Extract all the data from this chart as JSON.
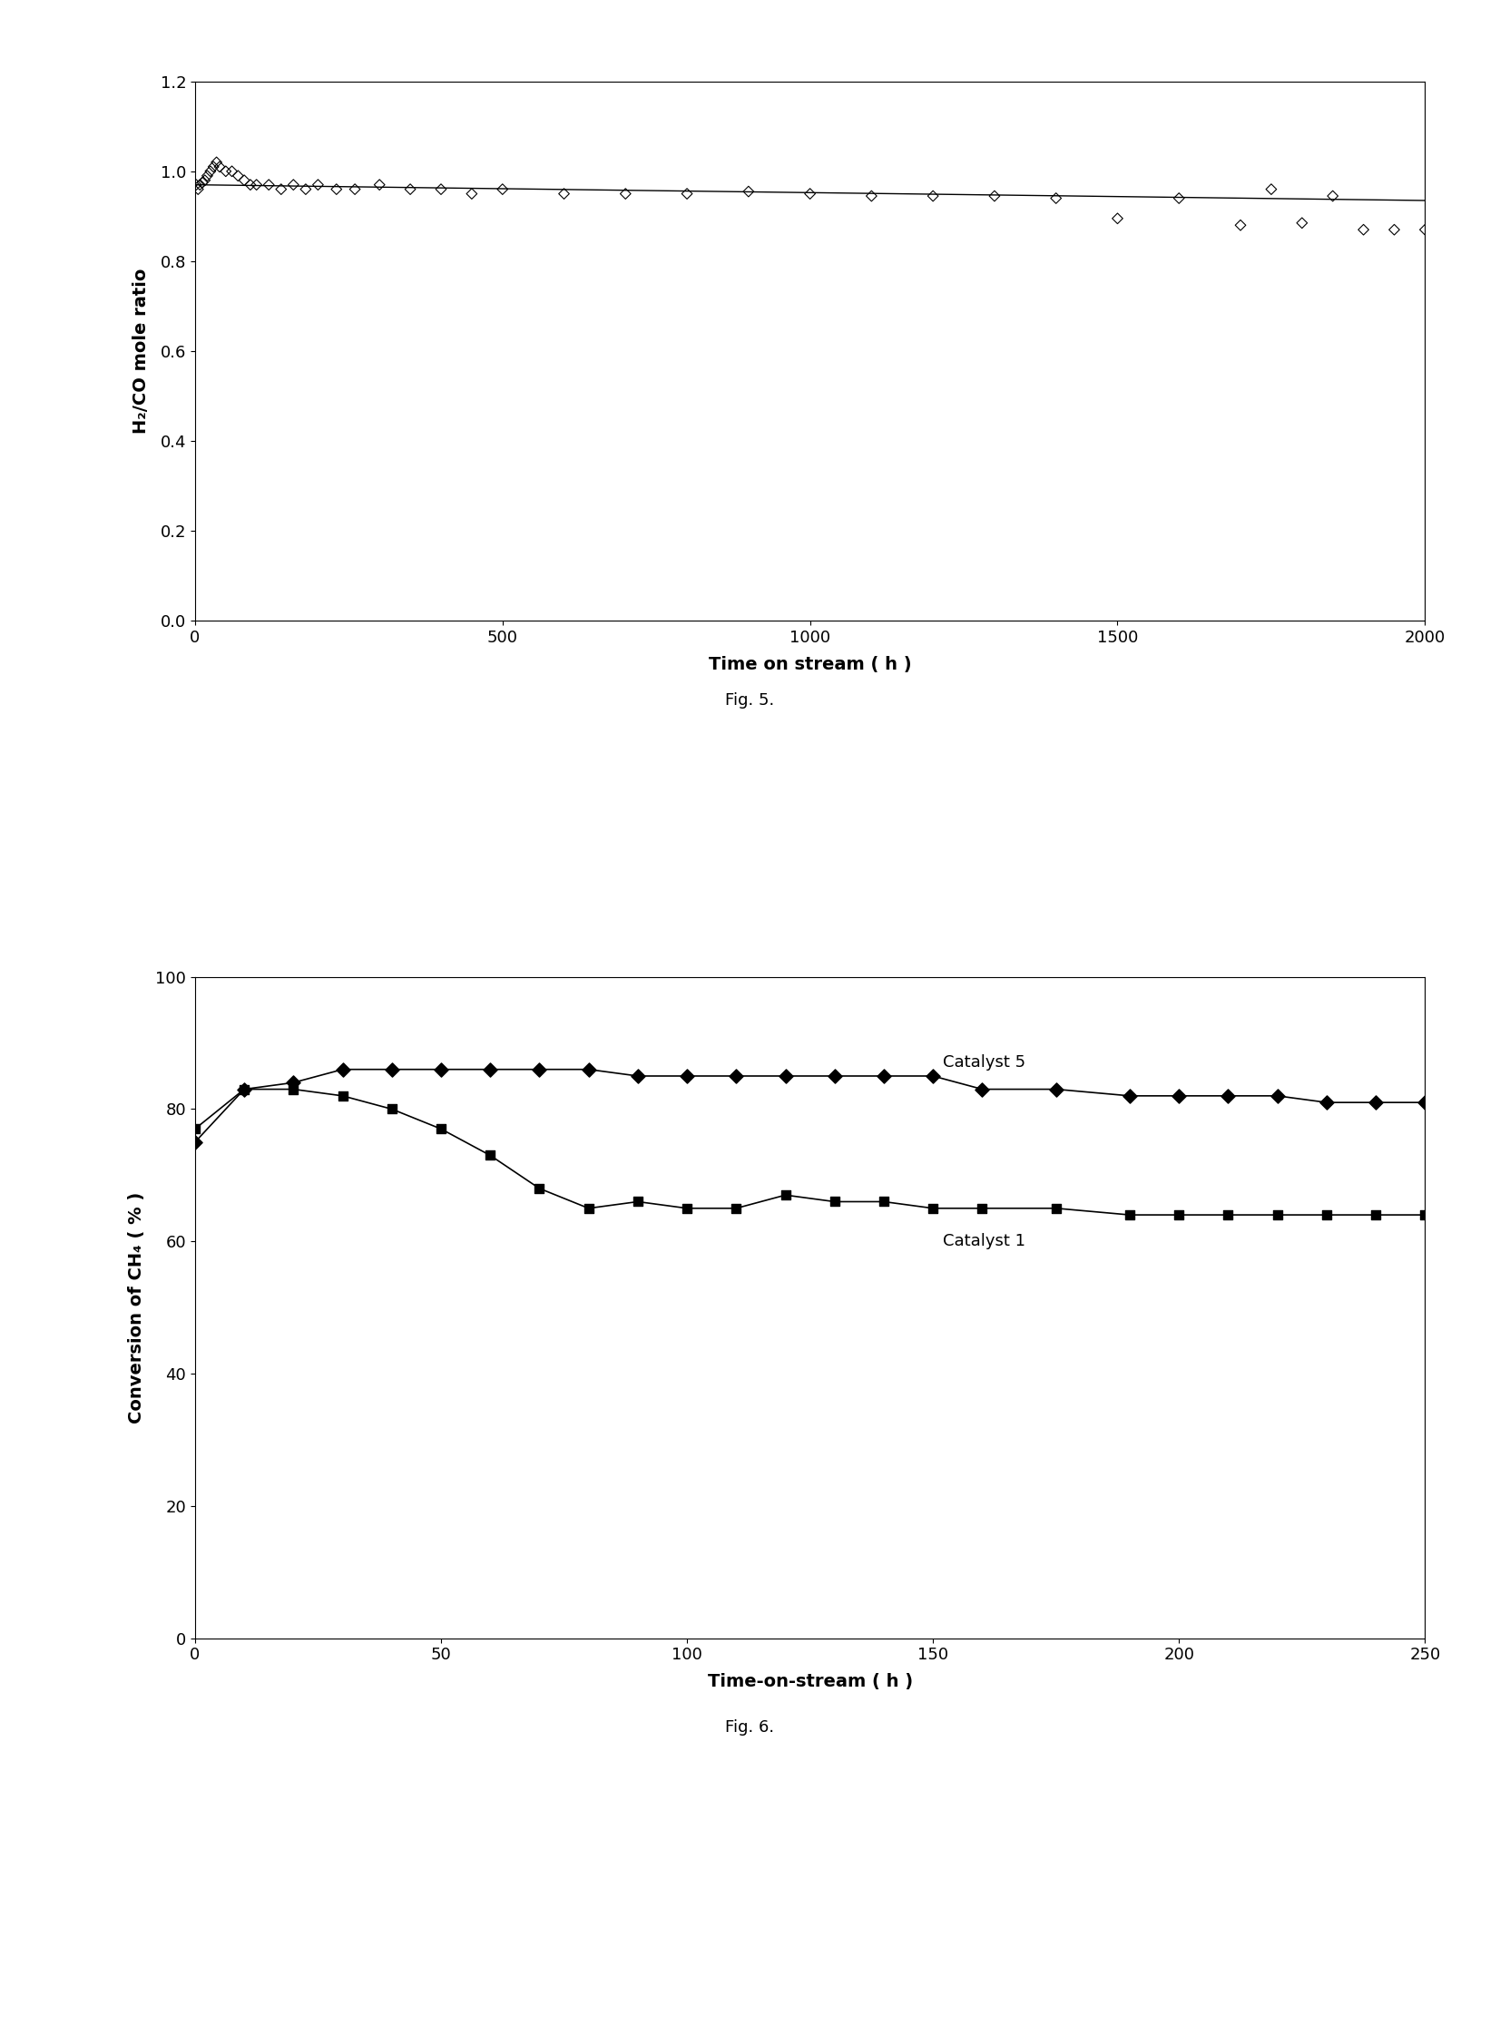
{
  "fig5": {
    "title": "Fig. 5.",
    "ylabel": "H₂/CO mole ratio",
    "xlabel": "Time on stream ( h )",
    "xlim": [
      0,
      2000
    ],
    "ylim": [
      0,
      1.2
    ],
    "yticks": [
      0,
      0.2,
      0.4,
      0.6,
      0.8,
      1.0,
      1.2
    ],
    "xticks": [
      0,
      500,
      1000,
      1500,
      2000
    ],
    "scatter_x": [
      2,
      5,
      8,
      12,
      16,
      20,
      25,
      30,
      35,
      40,
      50,
      60,
      70,
      80,
      90,
      100,
      120,
      140,
      160,
      180,
      200,
      230,
      260,
      300,
      350,
      400,
      450,
      500,
      600,
      700,
      800,
      900,
      1000,
      1100,
      1200,
      1300,
      1400,
      1500,
      1600,
      1700,
      1750,
      1800,
      1850,
      1900,
      1950,
      2000
    ],
    "scatter_y": [
      0.97,
      0.96,
      0.97,
      0.975,
      0.98,
      0.99,
      1.0,
      1.01,
      1.02,
      1.01,
      1.0,
      1.0,
      0.99,
      0.98,
      0.97,
      0.97,
      0.97,
      0.96,
      0.97,
      0.96,
      0.97,
      0.96,
      0.96,
      0.97,
      0.96,
      0.96,
      0.95,
      0.96,
      0.95,
      0.95,
      0.95,
      0.955,
      0.95,
      0.945,
      0.945,
      0.945,
      0.94,
      0.895,
      0.94,
      0.88,
      0.96,
      0.885,
      0.945,
      0.87,
      0.87,
      0.87
    ],
    "line_x": [
      0,
      2000
    ],
    "line_y": [
      0.97,
      0.935
    ]
  },
  "fig6": {
    "title": "Fig. 6.",
    "ylabel": "Conversion of CH₄ ( % )",
    "xlabel": "Time-on-stream ( h )",
    "xlim": [
      0,
      250
    ],
    "ylim": [
      0,
      100
    ],
    "yticks": [
      0,
      20,
      40,
      60,
      80,
      100
    ],
    "xticks": [
      0,
      50,
      100,
      150,
      200,
      250
    ],
    "cat5_x": [
      0,
      10,
      20,
      30,
      40,
      50,
      60,
      70,
      80,
      90,
      100,
      110,
      120,
      130,
      140,
      150,
      160,
      175,
      190,
      200,
      210,
      220,
      230,
      240,
      250
    ],
    "cat5_y": [
      75,
      83,
      84,
      86,
      86,
      86,
      86,
      86,
      86,
      85,
      85,
      85,
      85,
      85,
      85,
      85,
      83,
      83,
      82,
      82,
      82,
      82,
      81,
      81,
      81
    ],
    "cat1_x": [
      0,
      10,
      20,
      30,
      40,
      50,
      60,
      70,
      80,
      90,
      100,
      110,
      120,
      130,
      140,
      150,
      160,
      175,
      190,
      200,
      210,
      220,
      230,
      240,
      250
    ],
    "cat1_y": [
      77,
      83,
      83,
      82,
      80,
      77,
      73,
      68,
      65,
      66,
      65,
      65,
      67,
      66,
      66,
      65,
      65,
      65,
      64,
      64,
      64,
      64,
      64,
      64,
      64
    ],
    "legend_cat5": "Catalyst 5",
    "legend_cat1": "Catalyst 1"
  },
  "background_color": "#ffffff",
  "figure_width": 16.53,
  "figure_height": 22.43
}
